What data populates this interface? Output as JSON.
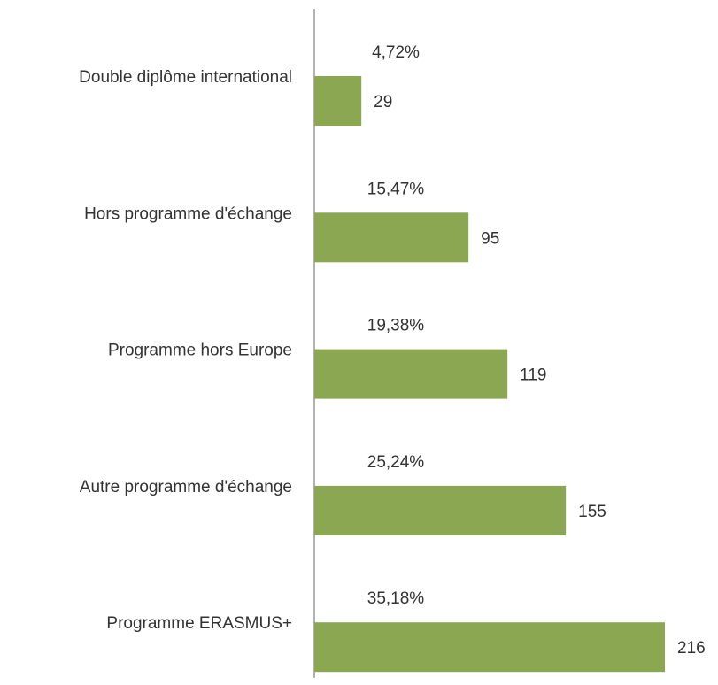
{
  "chart_data": {
    "type": "barh",
    "categories": [
      "Double diplôme international",
      "Hors programme d'échange",
      "Programme hors Europe",
      "Autre programme d'échange",
      "Programme ERASMUS+"
    ],
    "values": [
      29,
      95,
      119,
      155,
      216
    ],
    "color": "#8ba752",
    "value_label_color": "#5f7b2c",
    "shares": {
      "values": [
        4.72,
        15.47,
        19.38,
        25.24,
        35.18
      ],
      "value_labels": [
        "4,72%",
        "15,47%",
        "19,38%",
        "25,24%",
        "35,18%"
      ]
    }
  }
}
